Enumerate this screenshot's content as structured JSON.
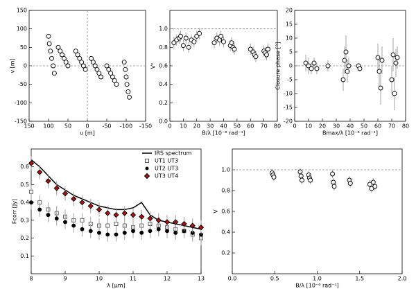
{
  "chart_data": [
    {
      "type": "scatter",
      "xlabel": "u [m]",
      "ylabel": "v [m]",
      "xlim": [
        150,
        -150
      ],
      "ylim": [
        -150,
        150
      ],
      "xticks": [
        150,
        100,
        50,
        0,
        -50,
        -100,
        -150
      ],
      "yticks": [
        -150,
        -100,
        -50,
        0,
        50,
        100,
        150
      ],
      "hline": 0,
      "vline": 0,
      "x": [
        100,
        98,
        95,
        92,
        88,
        85,
        75,
        70,
        65,
        60,
        55,
        50,
        30,
        25,
        20,
        15,
        10,
        5,
        -10,
        -15,
        -20,
        -25,
        -30,
        -35,
        -50,
        -55,
        -60,
        -65,
        -70,
        -75,
        -95,
        -98,
        -100,
        -102,
        -105,
        -108
      ],
      "series": [
        {
          "color": "#000000",
          "marker": "circle",
          "values": [
            80,
            60,
            40,
            20,
            0,
            -20,
            50,
            40,
            30,
            20,
            10,
            0,
            40,
            30,
            20,
            10,
            0,
            -10,
            20,
            10,
            0,
            -10,
            -20,
            -30,
            0,
            -10,
            -20,
            -30,
            -40,
            -50,
            10,
            -10,
            -30,
            -50,
            -70,
            -85
          ]
        }
      ]
    },
    {
      "type": "scatter",
      "xlabel": "B/λ [10⁻⁶ rad⁻¹]",
      "ylabel": "V²",
      "xlim": [
        0,
        80
      ],
      "ylim": [
        0,
        1.2
      ],
      "xticks": [
        0,
        10,
        20,
        30,
        40,
        50,
        60,
        70,
        80
      ],
      "yticks": [
        {
          "value": 0,
          "label": "0.0"
        },
        0.2,
        0.4,
        0.6,
        0.8,
        {
          "value": 1,
          "label": "1.0"
        }
      ],
      "hline": 1,
      "x": [
        3,
        5,
        7,
        8,
        10,
        12,
        14,
        16,
        18,
        20,
        22,
        33,
        35,
        37,
        38,
        40,
        45,
        46,
        47,
        48,
        60,
        62,
        63,
        64,
        70,
        71,
        72,
        73
      ],
      "series": [
        {
          "color": "#000000",
          "marker": "circle",
          "error": 0.06,
          "values": [
            0.85,
            0.88,
            0.9,
            0.92,
            0.82,
            0.9,
            0.8,
            0.88,
            0.86,
            0.92,
            0.95,
            0.85,
            0.9,
            0.88,
            0.92,
            0.86,
            0.82,
            0.85,
            0.8,
            0.78,
            0.78,
            0.75,
            0.72,
            0.7,
            0.76,
            0.74,
            0.72,
            0.78
          ]
        }
      ]
    },
    {
      "type": "scatter",
      "xlabel": "Bmax/λ [10⁻⁶ rad⁻¹]",
      "ylabel": "Closure phase [°]",
      "xlim": [
        0,
        80
      ],
      "ylim": [
        -20,
        20
      ],
      "xticks": [
        0,
        10,
        20,
        30,
        40,
        50,
        60,
        70,
        80
      ],
      "yticks": [
        -20,
        -15,
        -10,
        -5,
        0,
        5,
        10,
        15,
        20
      ],
      "hline": 0,
      "x": [
        8,
        10,
        12,
        14,
        16,
        24,
        35,
        36,
        37,
        38,
        39,
        46,
        47,
        60,
        61,
        62,
        63,
        70,
        71,
        72,
        73,
        74
      ],
      "series": [
        {
          "color": "#000000",
          "marker": "circle",
          "errors": [
            3,
            3,
            2,
            2,
            2,
            2,
            4,
            5,
            6,
            4,
            3,
            1,
            1,
            5,
            6,
            6,
            5,
            5,
            6,
            6,
            5,
            4
          ],
          "values": [
            1,
            0,
            -1,
            1,
            -1,
            0,
            -5,
            2,
            5,
            -2,
            0,
            0,
            -1,
            3,
            -2,
            -8,
            2,
            -5,
            4,
            -10,
            1,
            3
          ]
        }
      ]
    },
    {
      "type": "scatter",
      "xlabel": "λ [μm]",
      "ylabel": "Fcorr [Jy]",
      "xlim": [
        8,
        13
      ],
      "ylim": [
        0,
        0.7
      ],
      "xticks": [
        8,
        9,
        10,
        11,
        12,
        13
      ],
      "yticks": [
        0.1,
        0.2,
        0.3,
        0.4,
        0.5,
        0.6
      ],
      "legend": "upper right",
      "x": [
        8,
        8.25,
        8.5,
        8.75,
        9,
        9.25,
        9.5,
        9.75,
        10,
        10.25,
        10.5,
        10.75,
        11,
        11.25,
        11.5,
        11.75,
        12,
        12.25,
        12.5,
        12.75,
        13
      ],
      "series": [
        {
          "name": "IRS spectrum",
          "color": "#000000",
          "marker": "line",
          "values": [
            0.64,
            0.6,
            0.55,
            0.5,
            0.47,
            0.44,
            0.42,
            0.4,
            0.38,
            0.37,
            0.36,
            0.36,
            0.37,
            0.4,
            0.33,
            0.3,
            0.29,
            0.28,
            0.27,
            0.26,
            0.25
          ]
        },
        {
          "name": "UT1 UT3",
          "color": "#555555",
          "marker": "square",
          "error": 0.04,
          "values": [
            0.46,
            0.4,
            0.36,
            0.34,
            0.32,
            0.3,
            0.3,
            0.28,
            0.27,
            0.27,
            0.28,
            0.27,
            0.26,
            0.27,
            0.28,
            0.27,
            0.26,
            0.25,
            0.24,
            0.22,
            0.2
          ]
        },
        {
          "name": "UT2 UT3",
          "color": "#000000",
          "marker": "dot",
          "error": 0.04,
          "values": [
            0.4,
            0.36,
            0.33,
            0.31,
            0.29,
            0.27,
            0.25,
            0.24,
            0.23,
            0.22,
            0.22,
            0.23,
            0.24,
            0.23,
            0.24,
            0.25,
            0.24,
            0.23,
            0.24,
            0.23,
            0.22
          ]
        },
        {
          "name": "UT3 UT4",
          "color": "#b01010",
          "marker": "diamond",
          "error": 0.04,
          "values": [
            0.62,
            0.57,
            0.52,
            0.48,
            0.45,
            0.42,
            0.4,
            0.38,
            0.36,
            0.34,
            0.33,
            0.34,
            0.33,
            0.32,
            0.31,
            0.3,
            0.29,
            0.29,
            0.28,
            0.27,
            0.26
          ]
        }
      ]
    },
    {
      "type": "scatter",
      "xlabel": "B/λ [10⁻⁶ rad⁻¹]",
      "ylabel": "V",
      "xlim": [
        0,
        2
      ],
      "ylim": [
        0,
        1.2
      ],
      "xticks": [
        {
          "value": 0,
          "label": "0.0"
        },
        0.5,
        {
          "value": 1,
          "label": "1.0"
        },
        1.5,
        {
          "value": 2,
          "label": "2.0"
        }
      ],
      "yticks": [
        0.2,
        0.4,
        0.6,
        0.8,
        {
          "value": 1,
          "label": "1.0"
        }
      ],
      "hline": 1,
      "x": [
        0.47,
        0.48,
        0.49,
        0.8,
        0.81,
        0.82,
        0.9,
        0.91,
        0.92,
        1.18,
        1.19,
        1.2,
        1.38,
        1.39,
        1.62,
        1.64,
        1.66,
        1.68
      ],
      "series": [
        {
          "color": "#000000",
          "marker": "circle",
          "error": 0.04,
          "values": [
            0.97,
            0.95,
            0.93,
            0.98,
            0.94,
            0.9,
            0.95,
            0.92,
            0.9,
            0.96,
            0.88,
            0.84,
            0.9,
            0.87,
            0.86,
            0.82,
            0.88,
            0.84
          ]
        }
      ]
    }
  ]
}
